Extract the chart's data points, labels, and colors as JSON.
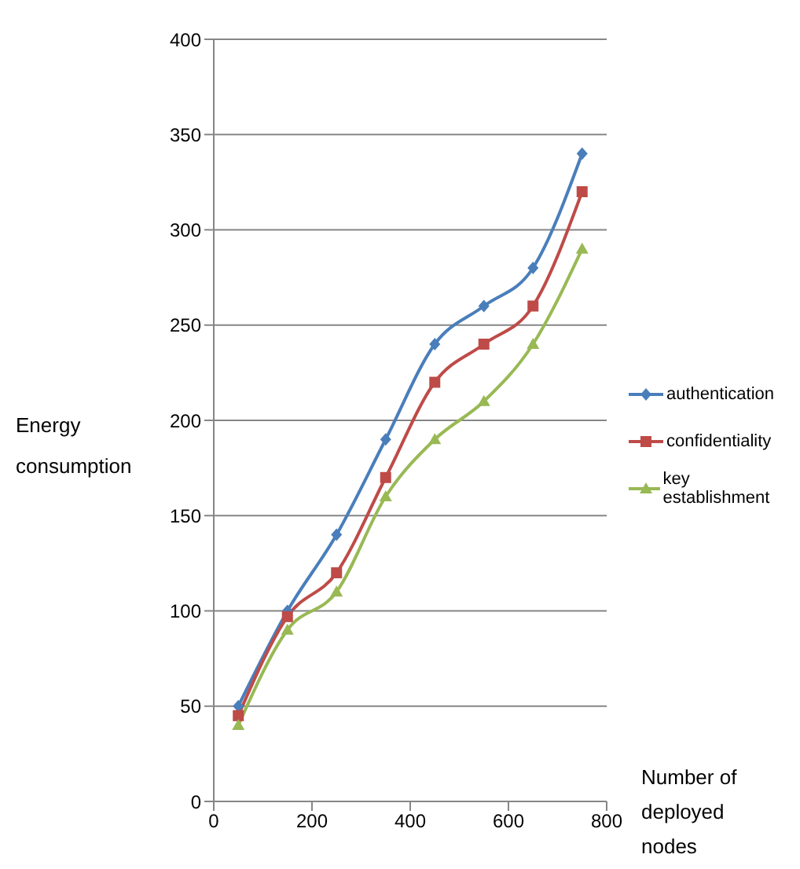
{
  "chart_data": {
    "type": "line",
    "xlabel": "Number of deployed nodes",
    "ylabel": "Energy consumption",
    "x": [
      50,
      150,
      250,
      350,
      450,
      550,
      650,
      750
    ],
    "series": [
      {
        "name": "authentication",
        "color": "#4a7ebb",
        "marker": "diamond",
        "values": [
          50,
          100,
          140,
          190,
          240,
          260,
          280,
          340
        ]
      },
      {
        "name": "confidentiality",
        "color": "#be4b48",
        "marker": "square",
        "values": [
          45,
          97,
          120,
          170,
          220,
          240,
          260,
          320
        ]
      },
      {
        "name": "key establishment",
        "color": "#98b954",
        "marker": "triangle",
        "values": [
          40,
          90,
          110,
          160,
          190,
          210,
          240,
          290
        ]
      }
    ],
    "xlim": [
      0,
      800
    ],
    "xticks": [
      0,
      200,
      400,
      600,
      800
    ],
    "ylim": [
      0,
      400
    ],
    "yticks": [
      0,
      50,
      100,
      150,
      200,
      250,
      300,
      350,
      400
    ],
    "grid": "y",
    "legend": "right"
  }
}
